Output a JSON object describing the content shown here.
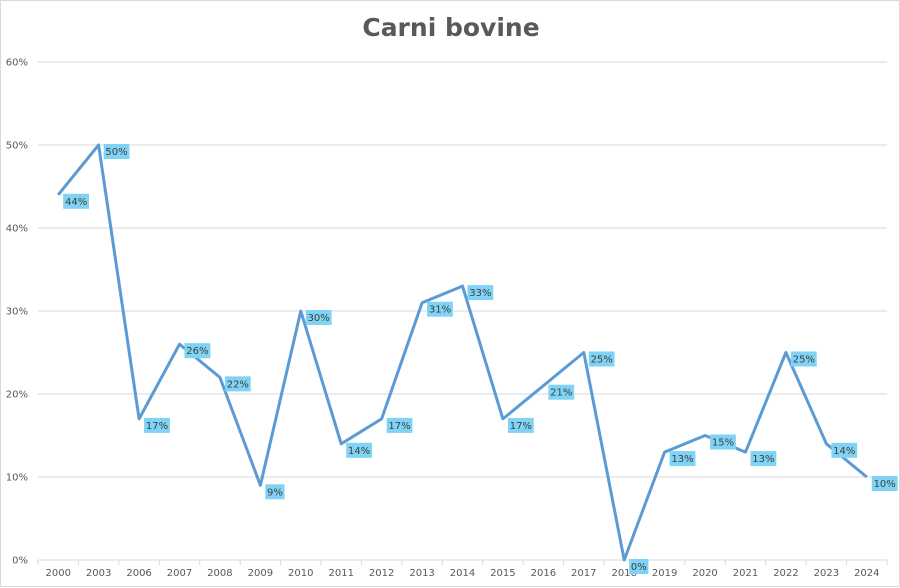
{
  "chart_data": {
    "type": "line",
    "title": "Carni bovine",
    "xlabel": "",
    "ylabel": "",
    "ylim": [
      0,
      60
    ],
    "y_ticks": [
      "0%",
      "10%",
      "20%",
      "30%",
      "40%",
      "50%",
      "60%"
    ],
    "categories": [
      "2000",
      "2003",
      "2006",
      "2007",
      "2008",
      "2009",
      "2010",
      "2011",
      "2012",
      "2013",
      "2014",
      "2015",
      "2016",
      "2017",
      "2018",
      "2019",
      "2020",
      "2021",
      "2022",
      "2023",
      "2024"
    ],
    "series": [
      {
        "values": [
          44,
          50,
          17,
          26,
          22,
          9,
          30,
          14,
          17,
          31,
          33,
          17,
          21,
          25,
          0,
          13,
          15,
          13,
          25,
          14,
          10
        ],
        "labels": [
          "44%",
          "50%",
          "17%",
          "26%",
          "22%",
          "9%",
          "30%",
          "14%",
          "17%",
          "31%",
          "33%",
          "17%",
          "21%",
          "25%",
          "0%",
          "13%",
          "15%",
          "13%",
          "25%",
          "14%",
          "10%"
        ]
      }
    ],
    "grid": true,
    "legend": "none",
    "colors": {
      "line": "#5b9bd5",
      "label_bg": "#7fd3f5",
      "grid": "#d9d9d9"
    }
  }
}
